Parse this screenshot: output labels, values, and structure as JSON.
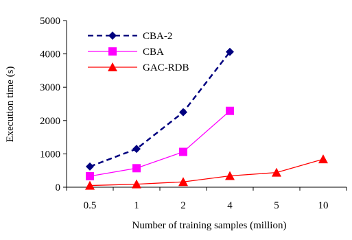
{
  "chart_data": {
    "type": "line",
    "categories": [
      "0.5",
      "1",
      "2",
      "4",
      "5",
      "10"
    ],
    "xlabel": "Number of training samples (million)",
    "ylabel": "Execution time (s)",
    "ylim": [
      0,
      5000
    ],
    "yticks": [
      "0",
      "1000",
      "2000",
      "3000",
      "4000",
      "5000"
    ],
    "grid": false,
    "legend_position": "top-left",
    "series": [
      {
        "name": "CBA-2",
        "values": [
          620,
          1150,
          2250,
          4060,
          null,
          null
        ],
        "color": "#00007f",
        "line_style": "dashed",
        "marker": "diamond"
      },
      {
        "name": "CBA",
        "values": [
          330,
          570,
          1060,
          2290,
          null,
          null
        ],
        "color": "#ff00ff",
        "line_style": "solid",
        "marker": "square"
      },
      {
        "name": "GAC-RDB",
        "values": [
          50,
          90,
          160,
          340,
          440,
          840
        ],
        "color": "#ff0000",
        "line_style": "solid",
        "marker": "triangle"
      }
    ]
  }
}
